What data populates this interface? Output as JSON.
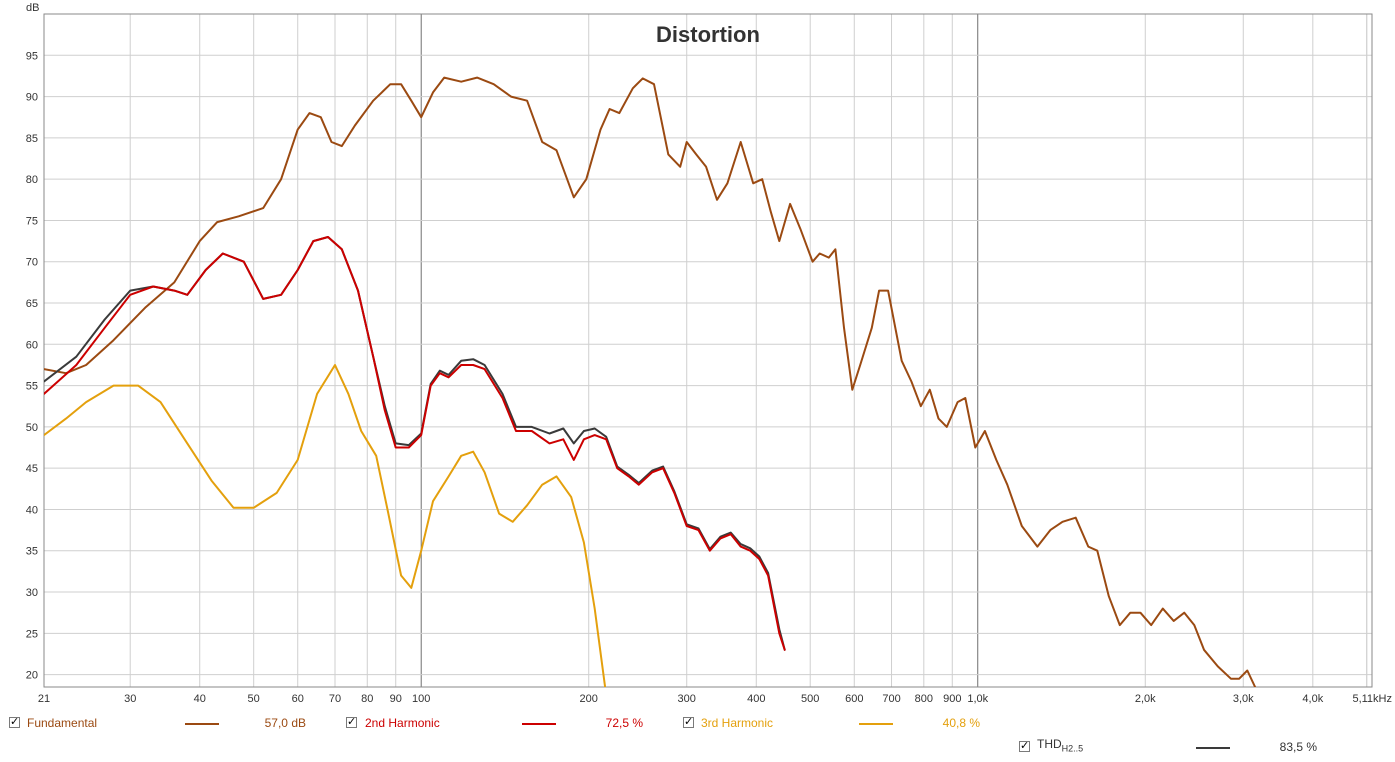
{
  "chart_data": {
    "type": "line",
    "title": "Distortion",
    "ylabel": "dB",
    "xscale": "log",
    "xlim": [
      21,
      5110
    ],
    "ylim": [
      18.5,
      100
    ],
    "grid": true,
    "x_tick_labels": [
      "21",
      "30",
      "40",
      "50",
      "60",
      "70",
      "80",
      "90",
      "100",
      "200",
      "300",
      "400",
      "500",
      "600",
      "700",
      "800",
      "900",
      "1,0k",
      "2,0k",
      "3,0k",
      "4,0k",
      "5,11kHz"
    ],
    "y_tick_labels": [
      "95",
      "90",
      "85",
      "80",
      "75",
      "70",
      "65",
      "60",
      "55",
      "50",
      "45",
      "40",
      "35",
      "30",
      "25",
      "20"
    ],
    "series": [
      {
        "name": "Fundamental",
        "color": "#9b4a12",
        "points": [
          [
            21,
            57
          ],
          [
            23,
            56.5
          ],
          [
            25,
            57.5
          ],
          [
            28,
            60.5
          ],
          [
            32,
            64.5
          ],
          [
            36,
            67.5
          ],
          [
            40,
            72.5
          ],
          [
            43,
            74.8
          ],
          [
            47,
            75.5
          ],
          [
            52,
            76.5
          ],
          [
            56,
            80
          ],
          [
            60,
            86
          ],
          [
            63,
            88
          ],
          [
            66,
            87.5
          ],
          [
            69,
            84.5
          ],
          [
            72,
            84
          ],
          [
            76,
            86.5
          ],
          [
            82,
            89.5
          ],
          [
            88,
            91.5
          ],
          [
            92,
            91.5
          ],
          [
            96,
            89.5
          ],
          [
            100,
            87.5
          ],
          [
            105,
            90.5
          ],
          [
            110,
            92.3
          ],
          [
            118,
            91.8
          ],
          [
            126,
            92.3
          ],
          [
            135,
            91.5
          ],
          [
            145,
            90
          ],
          [
            155,
            89.5
          ],
          [
            165,
            84.5
          ],
          [
            175,
            83.5
          ],
          [
            188,
            77.8
          ],
          [
            198,
            80
          ],
          [
            210,
            86
          ],
          [
            218,
            88.5
          ],
          [
            227,
            88
          ],
          [
            240,
            91
          ],
          [
            250,
            92.2
          ],
          [
            262,
            91.5
          ],
          [
            278,
            83
          ],
          [
            292,
            81.5
          ],
          [
            300,
            84.5
          ],
          [
            312,
            83
          ],
          [
            325,
            81.5
          ],
          [
            340,
            77.5
          ],
          [
            355,
            79.5
          ],
          [
            375,
            84.5
          ],
          [
            395,
            79.5
          ],
          [
            410,
            80
          ],
          [
            425,
            76
          ],
          [
            440,
            72.5
          ],
          [
            460,
            77
          ],
          [
            480,
            74
          ],
          [
            505,
            70
          ],
          [
            520,
            71
          ],
          [
            540,
            70.5
          ],
          [
            555,
            71.5
          ],
          [
            575,
            62
          ],
          [
            595,
            54.5
          ],
          [
            615,
            57.5
          ],
          [
            645,
            62
          ],
          [
            665,
            66.5
          ],
          [
            690,
            66.5
          ],
          [
            730,
            58
          ],
          [
            760,
            55.5
          ],
          [
            790,
            52.5
          ],
          [
            820,
            54.5
          ],
          [
            850,
            51
          ],
          [
            880,
            50
          ],
          [
            920,
            53
          ],
          [
            950,
            53.5
          ],
          [
            990,
            47.5
          ],
          [
            1030,
            49.5
          ],
          [
            1080,
            46
          ],
          [
            1130,
            43
          ],
          [
            1200,
            38
          ],
          [
            1280,
            35.5
          ],
          [
            1350,
            37.5
          ],
          [
            1420,
            38.5
          ],
          [
            1500,
            39
          ],
          [
            1580,
            35.5
          ],
          [
            1640,
            35
          ],
          [
            1720,
            29.5
          ],
          [
            1800,
            26
          ],
          [
            1880,
            27.5
          ],
          [
            1960,
            27.5
          ],
          [
            2050,
            26
          ],
          [
            2150,
            28
          ],
          [
            2250,
            26.5
          ],
          [
            2350,
            27.5
          ],
          [
            2450,
            26
          ],
          [
            2550,
            23
          ],
          [
            2700,
            21
          ],
          [
            2850,
            19.5
          ],
          [
            2950,
            19.5
          ],
          [
            3050,
            20.5
          ],
          [
            3150,
            18.5
          ]
        ]
      },
      {
        "name": "2nd Harmonic",
        "color": "#cc0000",
        "points": [
          [
            21,
            54
          ],
          [
            24,
            57.5
          ],
          [
            27,
            62
          ],
          [
            30,
            66
          ],
          [
            33,
            67
          ],
          [
            36,
            66.5
          ],
          [
            38,
            66
          ],
          [
            41,
            69
          ],
          [
            44,
            71
          ],
          [
            48,
            70
          ],
          [
            52,
            65.5
          ],
          [
            56,
            66
          ],
          [
            60,
            69
          ],
          [
            64,
            72.5
          ],
          [
            68,
            73
          ],
          [
            72,
            71.5
          ],
          [
            77,
            66.5
          ],
          [
            82,
            58.5
          ],
          [
            86,
            52
          ],
          [
            90,
            47.5
          ],
          [
            95,
            47.5
          ],
          [
            100,
            49
          ],
          [
            104,
            55
          ],
          [
            108,
            56.5
          ],
          [
            112,
            56
          ],
          [
            118,
            57.5
          ],
          [
            124,
            57.5
          ],
          [
            130,
            57
          ],
          [
            140,
            53.5
          ],
          [
            148,
            49.5
          ],
          [
            158,
            49.5
          ],
          [
            170,
            48
          ],
          [
            180,
            48.5
          ],
          [
            188,
            46
          ],
          [
            196,
            48.5
          ],
          [
            205,
            49
          ],
          [
            215,
            48.5
          ],
          [
            225,
            45
          ],
          [
            236,
            44
          ],
          [
            246,
            43
          ],
          [
            260,
            44.5
          ],
          [
            272,
            45
          ],
          [
            285,
            42
          ],
          [
            300,
            38
          ],
          [
            315,
            37.5
          ],
          [
            330,
            35
          ],
          [
            345,
            36.5
          ],
          [
            360,
            37
          ],
          [
            375,
            35.5
          ],
          [
            390,
            35
          ],
          [
            405,
            34
          ],
          [
            420,
            32
          ],
          [
            440,
            25
          ],
          [
            450,
            23
          ]
        ]
      },
      {
        "name": "3rd Harmonic",
        "color": "#e4a00d",
        "points": [
          [
            21,
            49
          ],
          [
            23,
            51
          ],
          [
            25,
            53
          ],
          [
            28,
            55
          ],
          [
            31,
            55
          ],
          [
            34,
            53
          ],
          [
            38,
            48
          ],
          [
            42,
            43.5
          ],
          [
            46,
            40.2
          ],
          [
            50,
            40.2
          ],
          [
            55,
            42
          ],
          [
            60,
            46
          ],
          [
            65,
            54
          ],
          [
            70,
            57.5
          ],
          [
            74,
            54
          ],
          [
            78,
            49.5
          ],
          [
            83,
            46.5
          ],
          [
            87,
            40
          ],
          [
            92,
            32
          ],
          [
            96,
            30.5
          ],
          [
            100,
            35
          ],
          [
            105,
            41
          ],
          [
            112,
            44
          ],
          [
            118,
            46.5
          ],
          [
            124,
            47
          ],
          [
            130,
            44.5
          ],
          [
            138,
            39.5
          ],
          [
            146,
            38.5
          ],
          [
            155,
            40.5
          ],
          [
            165,
            43
          ],
          [
            175,
            44
          ],
          [
            186,
            41.5
          ],
          [
            196,
            36
          ],
          [
            205,
            28
          ],
          [
            214,
            18.5
          ]
        ]
      },
      {
        "name": "THD H2..5",
        "color": "#3a3a3a",
        "points": [
          [
            21,
            55.5
          ],
          [
            24,
            58.5
          ],
          [
            27,
            63
          ],
          [
            30,
            66.5
          ],
          [
            33,
            67
          ],
          [
            36,
            66.5
          ],
          [
            38,
            66
          ],
          [
            41,
            69
          ],
          [
            44,
            71
          ],
          [
            48,
            70
          ],
          [
            52,
            65.5
          ],
          [
            56,
            66
          ],
          [
            60,
            69
          ],
          [
            64,
            72.5
          ],
          [
            68,
            73
          ],
          [
            72,
            71.5
          ],
          [
            77,
            66.5
          ],
          [
            82,
            58.5
          ],
          [
            86,
            52.5
          ],
          [
            90,
            48
          ],
          [
            95,
            47.8
          ],
          [
            100,
            49.2
          ],
          [
            104,
            55.2
          ],
          [
            108,
            56.8
          ],
          [
            112,
            56.3
          ],
          [
            118,
            58
          ],
          [
            124,
            58.2
          ],
          [
            130,
            57.5
          ],
          [
            140,
            54
          ],
          [
            148,
            50
          ],
          [
            158,
            50
          ],
          [
            170,
            49.2
          ],
          [
            180,
            49.8
          ],
          [
            188,
            48
          ],
          [
            196,
            49.5
          ],
          [
            205,
            49.8
          ],
          [
            215,
            48.8
          ],
          [
            225,
            45.2
          ],
          [
            236,
            44.2
          ],
          [
            246,
            43.2
          ],
          [
            260,
            44.7
          ],
          [
            272,
            45.2
          ],
          [
            285,
            42.2
          ],
          [
            300,
            38.2
          ],
          [
            315,
            37.7
          ],
          [
            330,
            35.2
          ],
          [
            345,
            36.7
          ],
          [
            360,
            37.2
          ],
          [
            375,
            35.8
          ],
          [
            390,
            35.3
          ],
          [
            405,
            34.3
          ],
          [
            420,
            32.3
          ],
          [
            440,
            25.5
          ],
          [
            450,
            23
          ]
        ]
      }
    ]
  },
  "legend": {
    "fundamental": {
      "label": "Fundamental",
      "value": "57,0 dB",
      "color": "#9b4a12"
    },
    "h2": {
      "label": "2nd Harmonic",
      "value": "72,5 %",
      "color": "#cc0000"
    },
    "h3": {
      "label": "3rd Harmonic",
      "value": "40,8 %",
      "color": "#e4a00d"
    },
    "thd": {
      "label": "THD",
      "sub": "H2..5",
      "value": "83,5 %",
      "color": "#3a3a3a"
    }
  }
}
